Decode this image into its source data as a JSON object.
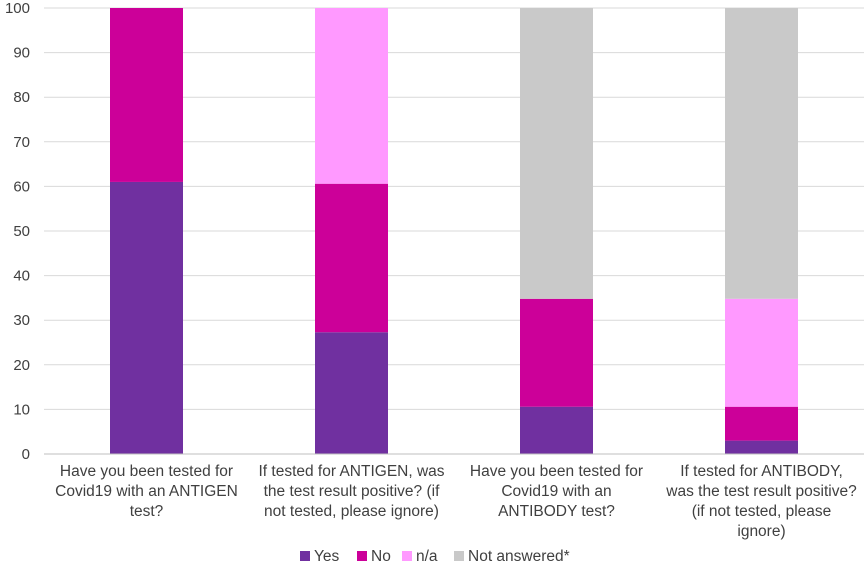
{
  "chart_data": {
    "type": "bar",
    "stacked": true,
    "categories": [
      [
        "Have you been tested for",
        "Covid19 with an ANTIGEN",
        "test?"
      ],
      [
        "If tested for ANTIGEN, was",
        "the test result positive? (if",
        "not tested, please ignore)"
      ],
      [
        "Have you been tested for",
        "Covid19 with an",
        "ANTIBODY test?"
      ],
      [
        "If tested for ANTIBODY,",
        "was the test result positive?",
        "(if not tested, please",
        "ignore)"
      ]
    ],
    "series": [
      {
        "name": "Yes",
        "color": "#7030a0",
        "values": [
          61,
          27.3,
          10.6,
          3
        ]
      },
      {
        "name": "No",
        "color": "#cc0099",
        "values": [
          39,
          33.3,
          24.2,
          7.6
        ]
      },
      {
        "name": "n/a",
        "color": "#ff99ff",
        "values": [
          0,
          39.4,
          0,
          24.2
        ]
      },
      {
        "name": "Not answered*",
        "color": "#c9c9c9",
        "values": [
          0,
          0,
          65.2,
          65.2
        ]
      }
    ],
    "ylim": [
      0,
      100
    ],
    "yticks": [
      0,
      10,
      20,
      30,
      40,
      50,
      60,
      70,
      80,
      90,
      100
    ],
    "grid": true,
    "legend_position": "bottom",
    "gridline_color": "#d9d9d9",
    "axis_color": "#bfbfbf",
    "text_color": "#404040"
  }
}
